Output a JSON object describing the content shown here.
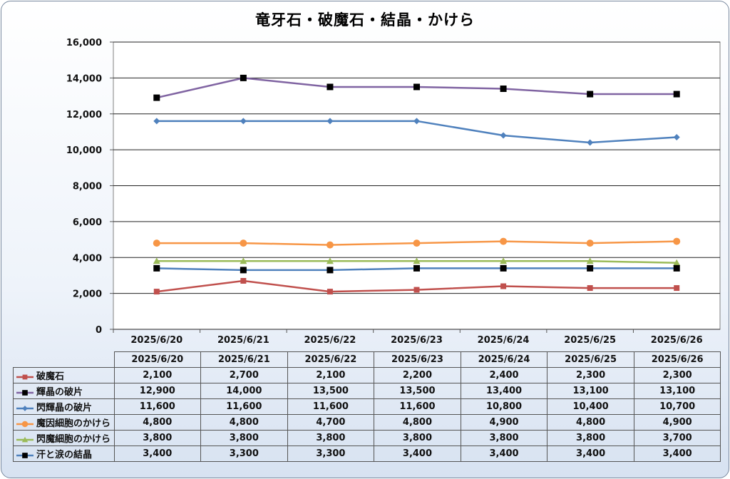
{
  "chart_data": {
    "type": "line",
    "title": "竜牙石・破魔石・結晶・かけら",
    "categories": [
      "2025/6/20",
      "2025/6/21",
      "2025/6/22",
      "2025/6/23",
      "2025/6/24",
      "2025/6/25",
      "2025/6/26"
    ],
    "ylim": [
      0,
      16000
    ],
    "yticks": [
      0,
      2000,
      4000,
      6000,
      8000,
      10000,
      12000,
      14000,
      16000
    ],
    "ytick_labels": [
      "0",
      "2,000",
      "4,000",
      "6,000",
      "8,000",
      "10,000",
      "12,000",
      "14,000",
      "16,000"
    ],
    "grid": true,
    "legend_placement": "data-table",
    "series": [
      {
        "name": "破魔石",
        "color": "#c0504d",
        "marker": "square",
        "values": [
          2100,
          2700,
          2100,
          2200,
          2400,
          2300,
          2300
        ],
        "labels": [
          "2,100",
          "2,700",
          "2,100",
          "2,200",
          "2,400",
          "2,300",
          "2,300"
        ]
      },
      {
        "name": "輝晶の破片",
        "color": "#8064a2",
        "marker": "square-black",
        "values": [
          12900,
          14000,
          13500,
          13500,
          13400,
          13100,
          13100
        ],
        "labels": [
          "12,900",
          "14,000",
          "13,500",
          "13,500",
          "13,400",
          "13,100",
          "13,100"
        ]
      },
      {
        "name": "閃輝晶の破片",
        "color": "#4f81bd",
        "marker": "diamond",
        "values": [
          11600,
          11600,
          11600,
          11600,
          10800,
          10400,
          10700
        ],
        "labels": [
          "11,600",
          "11,600",
          "11,600",
          "11,600",
          "10,800",
          "10,400",
          "10,700"
        ]
      },
      {
        "name": "魔因細胞のかけら",
        "color": "#f79646",
        "marker": "circle",
        "values": [
          4800,
          4800,
          4700,
          4800,
          4900,
          4800,
          4900
        ],
        "labels": [
          "4,800",
          "4,800",
          "4,700",
          "4,800",
          "4,900",
          "4,800",
          "4,900"
        ]
      },
      {
        "name": "閃魔細胞のかけら",
        "color": "#9bbb59",
        "marker": "triangle",
        "values": [
          3800,
          3800,
          3800,
          3800,
          3800,
          3800,
          3700
        ],
        "labels": [
          "3,800",
          "3,800",
          "3,800",
          "3,800",
          "3,800",
          "3,800",
          "3,700"
        ]
      },
      {
        "name": "汗と涙の結晶",
        "color": "#4f81bd",
        "marker": "square-black",
        "values": [
          3400,
          3300,
          3300,
          3400,
          3400,
          3400,
          3400
        ],
        "labels": [
          "3,400",
          "3,300",
          "3,300",
          "3,400",
          "3,400",
          "3,400",
          "3,400"
        ]
      }
    ]
  }
}
